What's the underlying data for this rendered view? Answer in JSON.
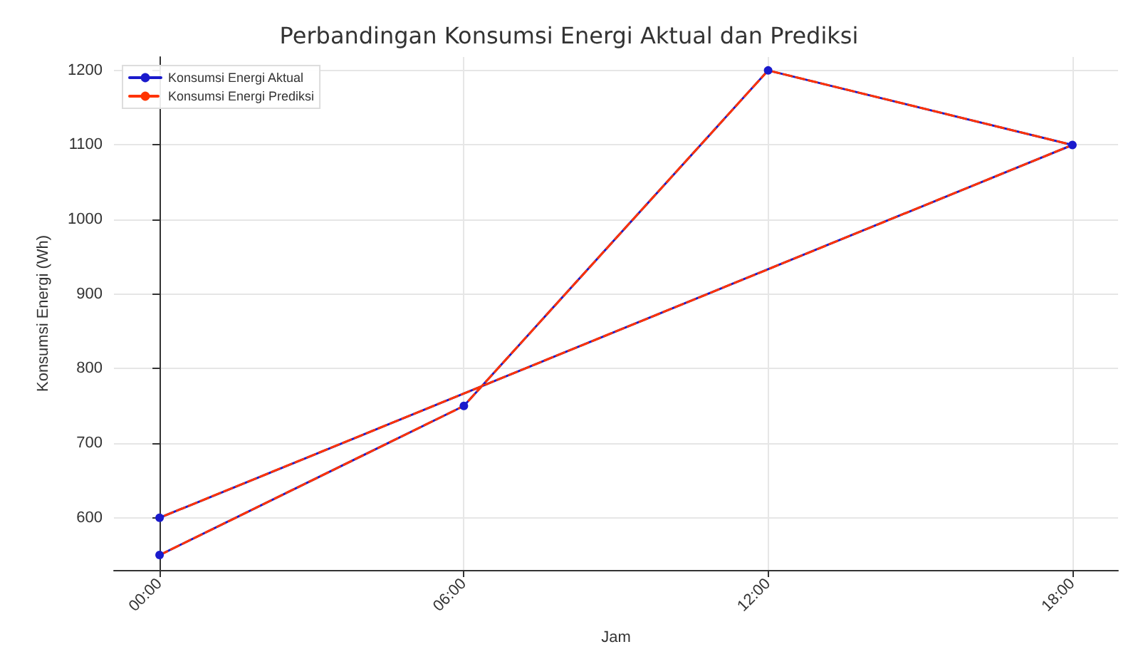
{
  "chart_data": {
    "type": "line",
    "title": "Perbandingan Konsumsi Energi Aktual dan Prediksi",
    "xlabel": "Jam",
    "ylabel": "Konsumsi Energi (Wh)",
    "x": [
      0,
      6,
      12,
      18,
      0
    ],
    "series": [
      {
        "name": "Konsumsi Energi Aktual",
        "color": "#1a1acc",
        "values": [
          550,
          750,
          1200,
          1100,
          600
        ],
        "marker": "circle",
        "line_style": "solid"
      },
      {
        "name": "Konsumsi Energi Prediksi",
        "color": "#ff3300",
        "values": [
          550,
          750,
          1200,
          1100,
          600
        ],
        "marker": "none",
        "line_style": "dashed"
      }
    ],
    "xlim": [
      -0.9,
      18.9
    ],
    "xticks": [
      {
        "value": 0,
        "label": "00:00"
      },
      {
        "value": 6,
        "label": "06:00"
      },
      {
        "value": 12,
        "label": "12:00"
      },
      {
        "value": 18,
        "label": "18:00"
      }
    ],
    "ylim": [
      530,
      1218
    ],
    "yticks": [
      600,
      700,
      800,
      900,
      1000,
      1100,
      1200
    ],
    "grid": true,
    "legend": "top left"
  }
}
